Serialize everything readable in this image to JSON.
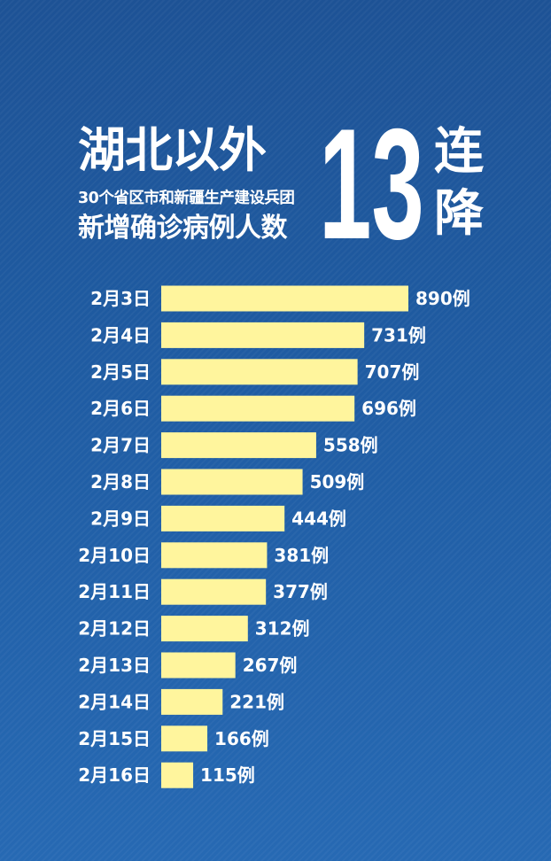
{
  "header": {
    "title_line1": "湖北以外",
    "subtitle": "30个省区市和新疆生产建设兵团",
    "title_line2": "新增确诊病例人数",
    "highlight_number": "13",
    "highlight_char1": "连",
    "highlight_char2": "降"
  },
  "colors": {
    "background": "#1f5ca3",
    "bar": "#fff59d",
    "text": "#ffffff"
  },
  "chart_data": {
    "type": "bar",
    "orientation": "horizontal",
    "categories": [
      "2月3日",
      "2月4日",
      "2月5日",
      "2月6日",
      "2月7日",
      "2月8日",
      "2月9日",
      "2月10日",
      "2月11日",
      "2月12日",
      "2月13日",
      "2月14日",
      "2月15日",
      "2月16日"
    ],
    "values": [
      890,
      731,
      707,
      696,
      558,
      509,
      444,
      381,
      377,
      312,
      267,
      221,
      166,
      115
    ],
    "value_labels": [
      "890例",
      "731例",
      "707例",
      "696例",
      "558例",
      "509例",
      "444例",
      "381例",
      "377例",
      "312例",
      "267例",
      "221例",
      "166例",
      "115例"
    ],
    "grid": false
  }
}
